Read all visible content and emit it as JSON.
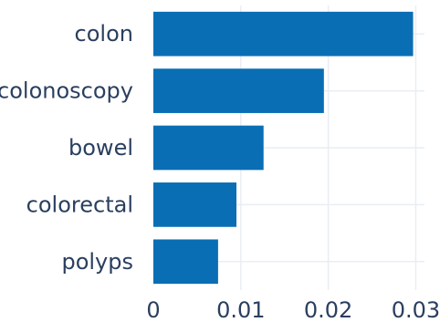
{
  "chart_data": {
    "type": "bar",
    "orientation": "horizontal",
    "categories": [
      "colon",
      "colonoscopy",
      "bowel",
      "colorectal",
      "polyps"
    ],
    "values": [
      0.0297,
      0.0195,
      0.0126,
      0.0095,
      0.0074
    ],
    "xlim": [
      0,
      0.031
    ],
    "x_ticks": [
      0,
      0.01,
      0.02,
      0.03
    ],
    "x_tick_labels": [
      "0",
      "0.01",
      "0.02",
      "0.03"
    ],
    "grid": true,
    "colors": {
      "bar": "#0a6eb4",
      "grid": "#e9eef4",
      "text": "#2a3f5f",
      "background": "#ffffff"
    }
  }
}
